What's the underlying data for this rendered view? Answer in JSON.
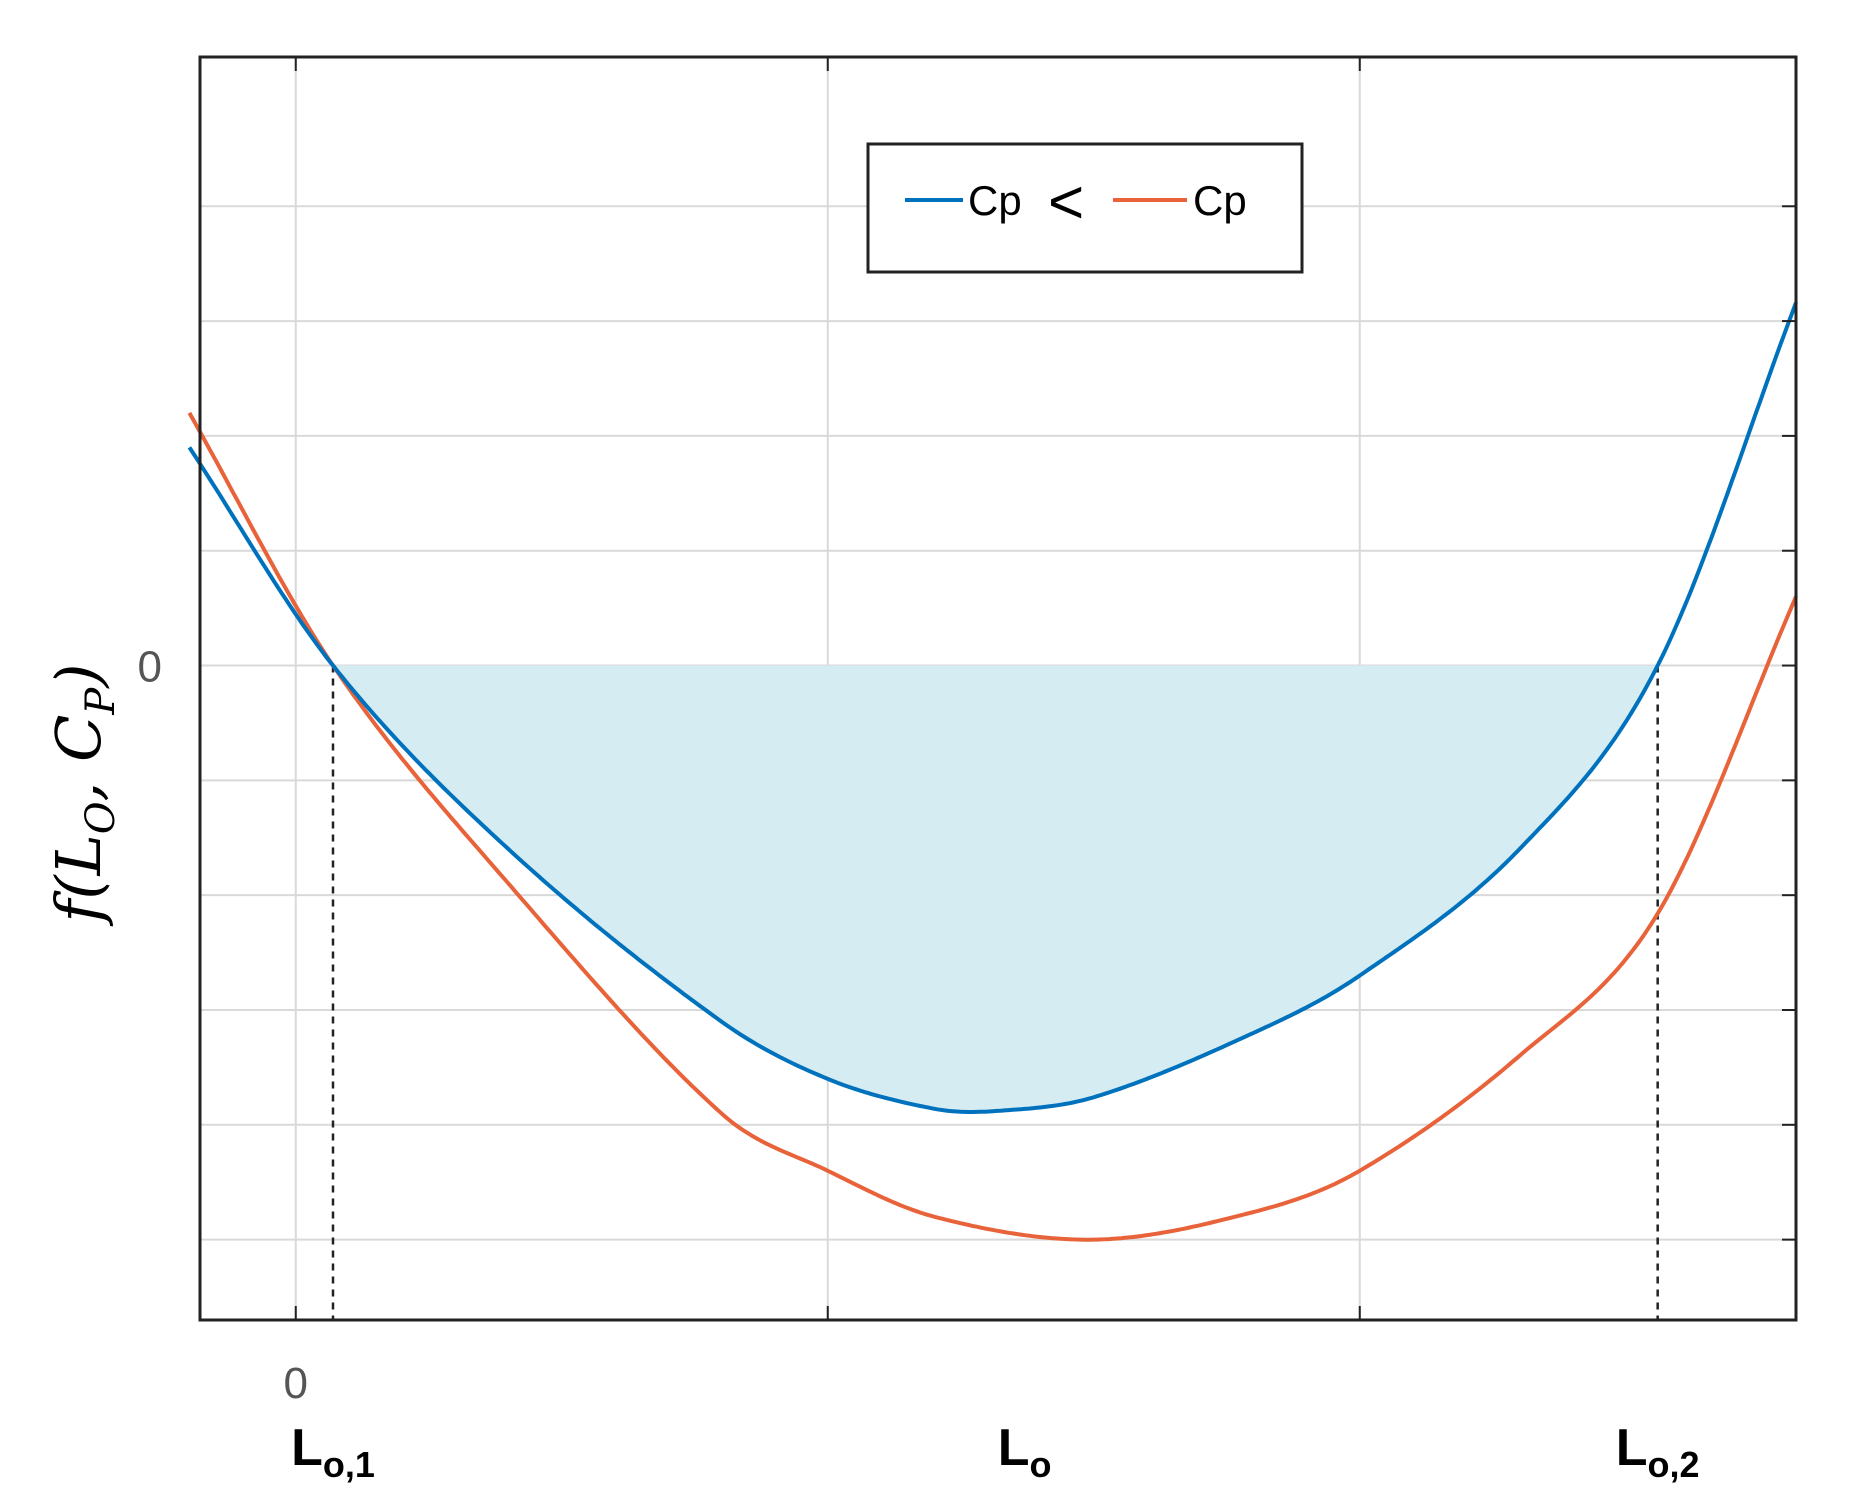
{
  "chart_data": {
    "type": "line",
    "ylabel": {
      "base": "f(L",
      "sub1": "O",
      "mid": ", C",
      "sub2": "P",
      "end": ")"
    },
    "xlim": [
      -0.18,
      2.82
    ],
    "ylim": [
      -2.85,
      2.65
    ],
    "x_ticks": [
      {
        "value": 0,
        "label": "0"
      },
      {
        "value": 1,
        "label": ""
      },
      {
        "value": 2,
        "label": ""
      }
    ],
    "y_ticks": [
      {
        "value": 0,
        "label": "0"
      }
    ],
    "y_gridlines": [
      2.0,
      1.5,
      1.0,
      0.5,
      0,
      -0.5,
      -1.0,
      -1.5,
      -2.0,
      -2.5
    ],
    "grid": true,
    "x_markers": [
      {
        "value": 0.07,
        "label": "L",
        "sub": "o,1"
      },
      {
        "value": 2.56,
        "label": "L",
        "sub": "o,2"
      }
    ],
    "x_center_label": {
      "value": 1.37,
      "label": "L",
      "sub": "o"
    },
    "series": [
      {
        "name": "Cp",
        "color": "#0072BD",
        "x": [
          -0.2,
          0.07,
          0.4,
          0.8,
          1.0,
          1.2,
          1.315,
          1.5,
          1.8,
          2.0,
          2.3,
          2.56,
          2.82
        ],
        "y": [
          0.95,
          0.0,
          -0.8,
          -1.55,
          -1.8,
          -1.93,
          -1.94,
          -1.88,
          -1.6,
          -1.35,
          -0.8,
          0.0,
          1.58
        ]
      },
      {
        "name": "Cp",
        "color": "#E8633A",
        "x": [
          -0.2,
          0.07,
          0.4,
          0.8,
          1.0,
          1.2,
          1.5,
          1.8,
          2.0,
          2.3,
          2.56,
          2.82
        ],
        "y": [
          1.1,
          0.0,
          -0.95,
          -1.95,
          -2.2,
          -2.4,
          -2.5,
          -2.38,
          -2.2,
          -1.7,
          -1.08,
          0.3
        ]
      }
    ],
    "shaded_region": {
      "series_index": 0,
      "between_y": 0,
      "x_from": 0.07,
      "x_to": 2.56,
      "color": "#d4ecf2"
    },
    "legend": {
      "placement": "top-center",
      "separator": "<"
    }
  }
}
